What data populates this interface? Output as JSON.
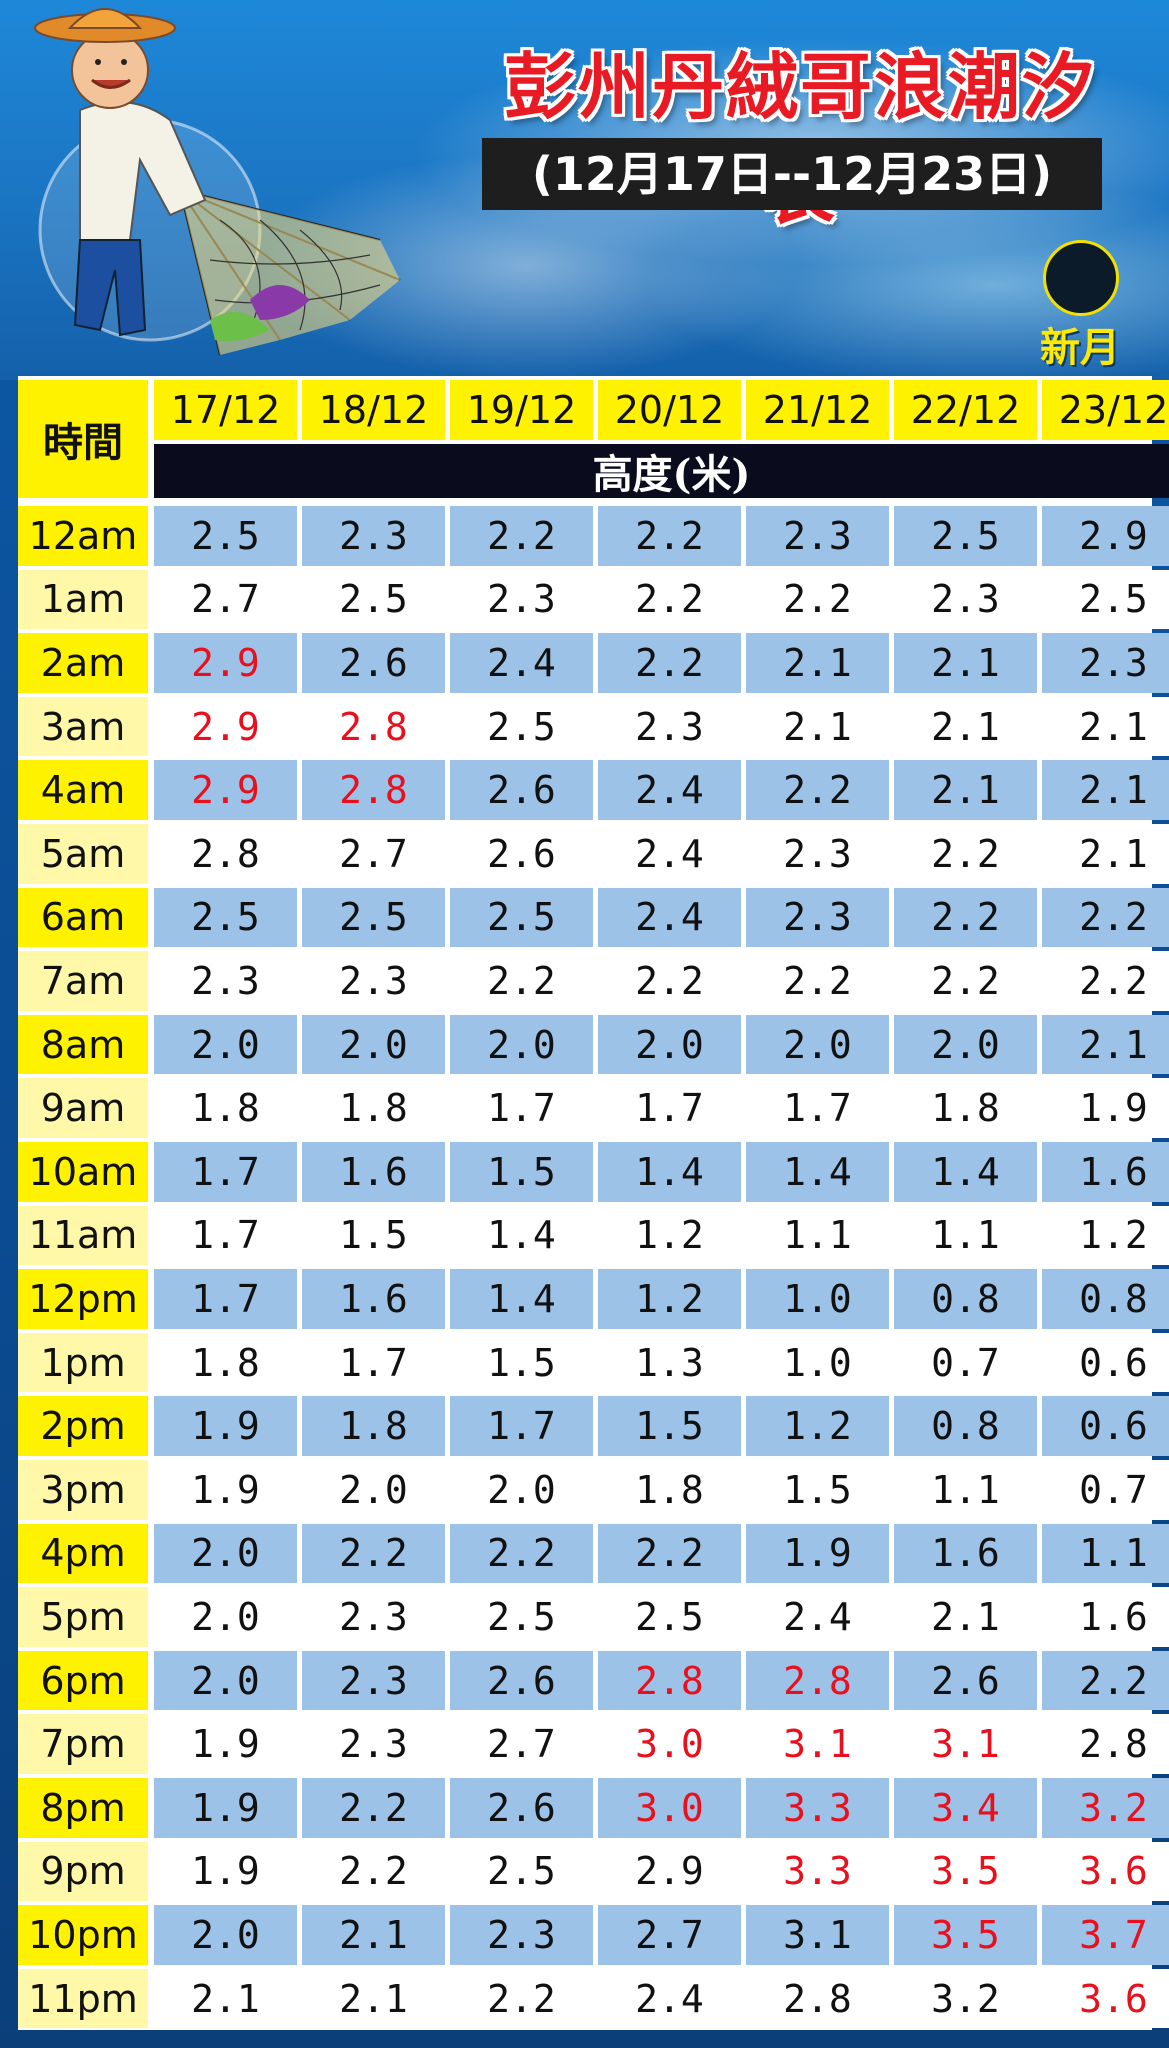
{
  "header": {
    "title": "彭州丹絨哥浪潮汐表",
    "date_range": "(12月17日--12月23日)",
    "moon_phase": "新月"
  },
  "table": {
    "time_header": "時間",
    "height_header": "高度(米)",
    "dates": [
      "17/12",
      "18/12",
      "19/12",
      "20/12",
      "21/12",
      "22/12",
      "23/12"
    ],
    "high_tide_color": "#e8101c",
    "rows": [
      {
        "time": "12am",
        "values": [
          "2.5",
          "2.3",
          "2.2",
          "2.2",
          "2.3",
          "2.5",
          "2.9"
        ],
        "high": [
          false,
          false,
          false,
          false,
          false,
          false,
          false
        ]
      },
      {
        "time": "1am",
        "values": [
          "2.7",
          "2.5",
          "2.3",
          "2.2",
          "2.2",
          "2.3",
          "2.5"
        ],
        "high": [
          false,
          false,
          false,
          false,
          false,
          false,
          false
        ]
      },
      {
        "time": "2am",
        "values": [
          "2.9",
          "2.6",
          "2.4",
          "2.2",
          "2.1",
          "2.1",
          "2.3"
        ],
        "high": [
          true,
          false,
          false,
          false,
          false,
          false,
          false
        ]
      },
      {
        "time": "3am",
        "values": [
          "2.9",
          "2.8",
          "2.5",
          "2.3",
          "2.1",
          "2.1",
          "2.1"
        ],
        "high": [
          true,
          true,
          false,
          false,
          false,
          false,
          false
        ]
      },
      {
        "time": "4am",
        "values": [
          "2.9",
          "2.8",
          "2.6",
          "2.4",
          "2.2",
          "2.1",
          "2.1"
        ],
        "high": [
          true,
          true,
          false,
          false,
          false,
          false,
          false
        ]
      },
      {
        "time": "5am",
        "values": [
          "2.8",
          "2.7",
          "2.6",
          "2.4",
          "2.3",
          "2.2",
          "2.1"
        ],
        "high": [
          false,
          false,
          false,
          false,
          false,
          false,
          false
        ]
      },
      {
        "time": "6am",
        "values": [
          "2.5",
          "2.5",
          "2.5",
          "2.4",
          "2.3",
          "2.2",
          "2.2"
        ],
        "high": [
          false,
          false,
          false,
          false,
          false,
          false,
          false
        ]
      },
      {
        "time": "7am",
        "values": [
          "2.3",
          "2.3",
          "2.2",
          "2.2",
          "2.2",
          "2.2",
          "2.2"
        ],
        "high": [
          false,
          false,
          false,
          false,
          false,
          false,
          false
        ]
      },
      {
        "time": "8am",
        "values": [
          "2.0",
          "2.0",
          "2.0",
          "2.0",
          "2.0",
          "2.0",
          "2.1"
        ],
        "high": [
          false,
          false,
          false,
          false,
          false,
          false,
          false
        ]
      },
      {
        "time": "9am",
        "values": [
          "1.8",
          "1.8",
          "1.7",
          "1.7",
          "1.7",
          "1.8",
          "1.9"
        ],
        "high": [
          false,
          false,
          false,
          false,
          false,
          false,
          false
        ]
      },
      {
        "time": "10am",
        "values": [
          "1.7",
          "1.6",
          "1.5",
          "1.4",
          "1.4",
          "1.4",
          "1.6"
        ],
        "high": [
          false,
          false,
          false,
          false,
          false,
          false,
          false
        ]
      },
      {
        "time": "11am",
        "values": [
          "1.7",
          "1.5",
          "1.4",
          "1.2",
          "1.1",
          "1.1",
          "1.2"
        ],
        "high": [
          false,
          false,
          false,
          false,
          false,
          false,
          false
        ]
      },
      {
        "time": "12pm",
        "values": [
          "1.7",
          "1.6",
          "1.4",
          "1.2",
          "1.0",
          "0.8",
          "0.8"
        ],
        "high": [
          false,
          false,
          false,
          false,
          false,
          false,
          false
        ]
      },
      {
        "time": "1pm",
        "values": [
          "1.8",
          "1.7",
          "1.5",
          "1.3",
          "1.0",
          "0.7",
          "0.6"
        ],
        "high": [
          false,
          false,
          false,
          false,
          false,
          false,
          false
        ]
      },
      {
        "time": "2pm",
        "values": [
          "1.9",
          "1.8",
          "1.7",
          "1.5",
          "1.2",
          "0.8",
          "0.6"
        ],
        "high": [
          false,
          false,
          false,
          false,
          false,
          false,
          false
        ]
      },
      {
        "time": "3pm",
        "values": [
          "1.9",
          "2.0",
          "2.0",
          "1.8",
          "1.5",
          "1.1",
          "0.7"
        ],
        "high": [
          false,
          false,
          false,
          false,
          false,
          false,
          false
        ]
      },
      {
        "time": "4pm",
        "values": [
          "2.0",
          "2.2",
          "2.2",
          "2.2",
          "1.9",
          "1.6",
          "1.1"
        ],
        "high": [
          false,
          false,
          false,
          false,
          false,
          false,
          false
        ]
      },
      {
        "time": "5pm",
        "values": [
          "2.0",
          "2.3",
          "2.5",
          "2.5",
          "2.4",
          "2.1",
          "1.6"
        ],
        "high": [
          false,
          false,
          false,
          false,
          false,
          false,
          false
        ]
      },
      {
        "time": "6pm",
        "values": [
          "2.0",
          "2.3",
          "2.6",
          "2.8",
          "2.8",
          "2.6",
          "2.2"
        ],
        "high": [
          false,
          false,
          false,
          true,
          true,
          false,
          false
        ]
      },
      {
        "time": "7pm",
        "values": [
          "1.9",
          "2.3",
          "2.7",
          "3.0",
          "3.1",
          "3.1",
          "2.8"
        ],
        "high": [
          false,
          false,
          false,
          true,
          true,
          true,
          false
        ]
      },
      {
        "time": "8pm",
        "values": [
          "1.9",
          "2.2",
          "2.6",
          "3.0",
          "3.3",
          "3.4",
          "3.2"
        ],
        "high": [
          false,
          false,
          false,
          true,
          true,
          true,
          true
        ]
      },
      {
        "time": "9pm",
        "values": [
          "1.9",
          "2.2",
          "2.5",
          "2.9",
          "3.3",
          "3.5",
          "3.6"
        ],
        "high": [
          false,
          false,
          false,
          false,
          true,
          true,
          true
        ]
      },
      {
        "time": "10pm",
        "values": [
          "2.0",
          "2.1",
          "2.3",
          "2.7",
          "3.1",
          "3.5",
          "3.7"
        ],
        "high": [
          false,
          false,
          false,
          false,
          false,
          true,
          true
        ]
      },
      {
        "time": "11pm",
        "values": [
          "2.1",
          "2.1",
          "2.2",
          "2.4",
          "2.8",
          "3.2",
          "3.6"
        ],
        "high": [
          false,
          false,
          false,
          false,
          false,
          false,
          true
        ]
      }
    ]
  }
}
